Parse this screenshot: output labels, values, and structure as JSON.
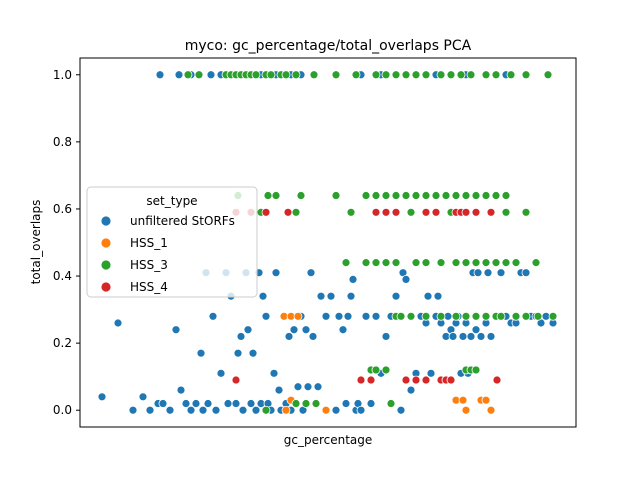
{
  "chart_data": {
    "type": "scatter",
    "title": "myco: gc_percentage/total_overlaps PCA",
    "xlabel": "gc_percentage",
    "ylabel": "total_overlaps",
    "ylim": [
      -0.05,
      1.05
    ],
    "yticks": [
      "0.0",
      "0.2",
      "0.4",
      "0.6",
      "0.8",
      "1.0"
    ],
    "xticks_visible": false,
    "legend": {
      "title": "set_type",
      "position": "center-left"
    },
    "series": [
      {
        "name": "unfiltered StORFs",
        "color": "#1f77b4",
        "points": [
          [
            102,
            0.04
          ],
          [
            118,
            0.26
          ],
          [
            133,
            0.0
          ],
          [
            143,
            0.04
          ],
          [
            150,
            0.0
          ],
          [
            158,
            0.02
          ],
          [
            163,
            0.02
          ],
          [
            170,
            0.0
          ],
          [
            176,
            0.24
          ],
          [
            181,
            0.06
          ],
          [
            186,
            0.02
          ],
          [
            191,
            0.0
          ],
          [
            196,
            0.02
          ],
          [
            201,
            0.17
          ],
          [
            203,
            0.0
          ],
          [
            206,
            0.41
          ],
          [
            208,
            0.02
          ],
          [
            213,
            0.28
          ],
          [
            216,
            0.0
          ],
          [
            221,
            0.11
          ],
          [
            226,
            0.41
          ],
          [
            228,
            0.02
          ],
          [
            231,
            0.34
          ],
          [
            236,
            0.02
          ],
          [
            238,
            0.17
          ],
          [
            241,
            0.22
          ],
          [
            243,
            0.0
          ],
          [
            246,
            0.41
          ],
          [
            248,
            0.24
          ],
          [
            251,
            0.02
          ],
          [
            253,
            0.17
          ],
          [
            256,
            0.0
          ],
          [
            259,
            0.41
          ],
          [
            261,
            0.02
          ],
          [
            263,
            0.34
          ],
          [
            266,
            0.28
          ],
          [
            268,
            0.02
          ],
          [
            271,
            0.0
          ],
          [
            274,
            0.11
          ],
          [
            276,
            0.41
          ],
          [
            279,
            0.06
          ],
          [
            281,
            0.0
          ],
          [
            284,
            0.28
          ],
          [
            286,
            0.02
          ],
          [
            289,
            0.22
          ],
          [
            291,
            0.0
          ],
          [
            294,
            0.24
          ],
          [
            296,
            0.02
          ],
          [
            298,
            0.07
          ],
          [
            301,
            0.28
          ],
          [
            303,
            0.0
          ],
          [
            306,
            0.24
          ],
          [
            308,
            0.07
          ],
          [
            311,
            0.41
          ],
          [
            313,
            0.22
          ],
          [
            318,
            0.07
          ],
          [
            321,
            0.34
          ],
          [
            326,
            0.28
          ],
          [
            331,
            0.34
          ],
          [
            336,
            0.0
          ],
          [
            339,
            0.28
          ],
          [
            343,
            0.24
          ],
          [
            346,
            0.02
          ],
          [
            348,
            0.28
          ],
          [
            351,
            0.34
          ],
          [
            353,
            0.39
          ],
          [
            356,
            0.0
          ],
          [
            358,
            0.02
          ],
          [
            361,
            0.0
          ],
          [
            366,
            0.28
          ],
          [
            371,
            0.02
          ],
          [
            376,
            0.28
          ],
          [
            381,
            0.11
          ],
          [
            386,
            0.22
          ],
          [
            391,
            0.28
          ],
          [
            396,
            0.34
          ],
          [
            401,
            0.0
          ],
          [
            403,
            0.41
          ],
          [
            406,
            0.39
          ],
          [
            411,
            0.06
          ],
          [
            416,
            0.11
          ],
          [
            421,
            0.28
          ],
          [
            426,
            0.26
          ],
          [
            428,
            0.34
          ],
          [
            431,
            0.11
          ],
          [
            436,
            0.28
          ],
          [
            438,
            0.34
          ],
          [
            441,
            0.26
          ],
          [
            446,
            0.22
          ],
          [
            448,
            0.28
          ],
          [
            451,
            0.24
          ],
          [
            453,
            0.22
          ],
          [
            456,
            0.26
          ],
          [
            458,
            0.28
          ],
          [
            461,
            0.11
          ],
          [
            463,
            0.22
          ],
          [
            466,
            0.26
          ],
          [
            468,
            0.11
          ],
          [
            471,
            0.22
          ],
          [
            473,
            0.41
          ],
          [
            476,
            0.24
          ],
          [
            478,
            0.41
          ],
          [
            481,
            0.22
          ],
          [
            486,
            0.26
          ],
          [
            488,
            0.41
          ],
          [
            491,
            0.22
          ],
          [
            496,
            0.28
          ],
          [
            501,
            0.41
          ],
          [
            506,
            0.28
          ],
          [
            511,
            0.26
          ],
          [
            516,
            0.26
          ],
          [
            521,
            0.41
          ],
          [
            526,
            0.41
          ],
          [
            531,
            0.28
          ],
          [
            536,
            0.28
          ],
          [
            541,
            0.26
          ],
          [
            546,
            0.28
          ],
          [
            553,
            0.26
          ],
          [
            160,
            1.0
          ],
          [
            179,
            1.0
          ],
          [
            191,
            1.0
          ],
          [
            211,
            1.0
          ],
          [
            221,
            1.0
          ],
          [
            231,
            1.0
          ],
          [
            246,
            1.0
          ],
          [
            261,
            1.0
          ],
          [
            276,
            1.0
          ],
          [
            291,
            1.0
          ],
          [
            301,
            1.0
          ],
          [
            361,
            1.0
          ],
          [
            381,
            1.0
          ],
          [
            406,
            1.0
          ],
          [
            436,
            1.0
          ],
          [
            466,
            1.0
          ],
          [
            506,
            1.0
          ]
        ]
      },
      {
        "name": "HSS_1",
        "color": "#ff7f0e",
        "points": [
          [
            284,
            0.28
          ],
          [
            291,
            0.28
          ],
          [
            298,
            0.28
          ],
          [
            291,
            0.03
          ],
          [
            286,
            0.0
          ],
          [
            326,
            0.0
          ],
          [
            456,
            0.03
          ],
          [
            463,
            0.03
          ],
          [
            466,
            0.0
          ],
          [
            481,
            0.03
          ],
          [
            486,
            0.03
          ],
          [
            491,
            0.0
          ]
        ]
      },
      {
        "name": "HSS_3",
        "color": "#2ca02c",
        "points": [
          [
            238,
            0.64
          ],
          [
            268,
            0.64
          ],
          [
            276,
            0.64
          ],
          [
            301,
            0.64
          ],
          [
            336,
            0.64
          ],
          [
            366,
            0.64
          ],
          [
            376,
            0.64
          ],
          [
            386,
            0.64
          ],
          [
            396,
            0.64
          ],
          [
            406,
            0.64
          ],
          [
            416,
            0.64
          ],
          [
            426,
            0.64
          ],
          [
            436,
            0.64
          ],
          [
            446,
            0.64
          ],
          [
            456,
            0.64
          ],
          [
            466,
            0.64
          ],
          [
            476,
            0.64
          ],
          [
            486,
            0.64
          ],
          [
            496,
            0.64
          ],
          [
            506,
            0.64
          ],
          [
            261,
            0.59
          ],
          [
            296,
            0.59
          ],
          [
            351,
            0.59
          ],
          [
            411,
            0.59
          ],
          [
            451,
            0.59
          ],
          [
            506,
            0.59
          ],
          [
            526,
            0.59
          ],
          [
            346,
            0.44
          ],
          [
            366,
            0.44
          ],
          [
            376,
            0.44
          ],
          [
            386,
            0.44
          ],
          [
            396,
            0.44
          ],
          [
            416,
            0.44
          ],
          [
            426,
            0.44
          ],
          [
            441,
            0.44
          ],
          [
            456,
            0.44
          ],
          [
            466,
            0.44
          ],
          [
            476,
            0.44
          ],
          [
            486,
            0.44
          ],
          [
            496,
            0.44
          ],
          [
            506,
            0.44
          ],
          [
            516,
            0.44
          ],
          [
            536,
            0.44
          ],
          [
            396,
            0.28
          ],
          [
            401,
            0.28
          ],
          [
            411,
            0.28
          ],
          [
            426,
            0.28
          ],
          [
            441,
            0.28
          ],
          [
            456,
            0.28
          ],
          [
            466,
            0.28
          ],
          [
            476,
            0.28
          ],
          [
            486,
            0.28
          ],
          [
            496,
            0.28
          ],
          [
            501,
            0.28
          ],
          [
            516,
            0.28
          ],
          [
            526,
            0.28
          ],
          [
            538,
            0.28
          ],
          [
            553,
            0.28
          ],
          [
            371,
            0.12
          ],
          [
            376,
            0.12
          ],
          [
            386,
            0.12
          ],
          [
            466,
            0.12
          ],
          [
            471,
            0.12
          ],
          [
            476,
            0.12
          ],
          [
            266,
            0.0
          ],
          [
            296,
            0.02
          ],
          [
            306,
            0.02
          ],
          [
            316,
            0.02
          ],
          [
            391,
            0.02
          ],
          [
            188,
            1.0
          ],
          [
            199,
            1.0
          ],
          [
            226,
            1.0
          ],
          [
            231,
            1.0
          ],
          [
            236,
            1.0
          ],
          [
            241,
            1.0
          ],
          [
            246,
            1.0
          ],
          [
            251,
            1.0
          ],
          [
            256,
            1.0
          ],
          [
            266,
            1.0
          ],
          [
            271,
            1.0
          ],
          [
            281,
            1.0
          ],
          [
            286,
            1.0
          ],
          [
            296,
            1.0
          ],
          [
            314,
            1.0
          ],
          [
            336,
            1.0
          ],
          [
            356,
            1.0
          ],
          [
            376,
            1.0
          ],
          [
            386,
            1.0
          ],
          [
            396,
            1.0
          ],
          [
            406,
            1.0
          ],
          [
            416,
            1.0
          ],
          [
            426,
            1.0
          ],
          [
            441,
            1.0
          ],
          [
            451,
            1.0
          ],
          [
            461,
            1.0
          ],
          [
            471,
            1.0
          ],
          [
            486,
            1.0
          ],
          [
            496,
            1.0
          ],
          [
            511,
            1.0
          ],
          [
            526,
            1.0
          ],
          [
            548,
            1.0
          ]
        ]
      },
      {
        "name": "HSS_4",
        "color": "#d62728",
        "points": [
          [
            236,
            0.59
          ],
          [
            251,
            0.59
          ],
          [
            266,
            0.59
          ],
          [
            288,
            0.59
          ],
          [
            376,
            0.59
          ],
          [
            386,
            0.59
          ],
          [
            396,
            0.59
          ],
          [
            426,
            0.59
          ],
          [
            436,
            0.59
          ],
          [
            456,
            0.59
          ],
          [
            461,
            0.59
          ],
          [
            466,
            0.59
          ],
          [
            476,
            0.59
          ],
          [
            491,
            0.59
          ],
          [
            236,
            0.09
          ],
          [
            361,
            0.09
          ],
          [
            371,
            0.09
          ],
          [
            406,
            0.09
          ],
          [
            416,
            0.09
          ],
          [
            426,
            0.09
          ],
          [
            441,
            0.09
          ],
          [
            446,
            0.09
          ],
          [
            451,
            0.09
          ],
          [
            497,
            0.09
          ]
        ]
      }
    ]
  }
}
